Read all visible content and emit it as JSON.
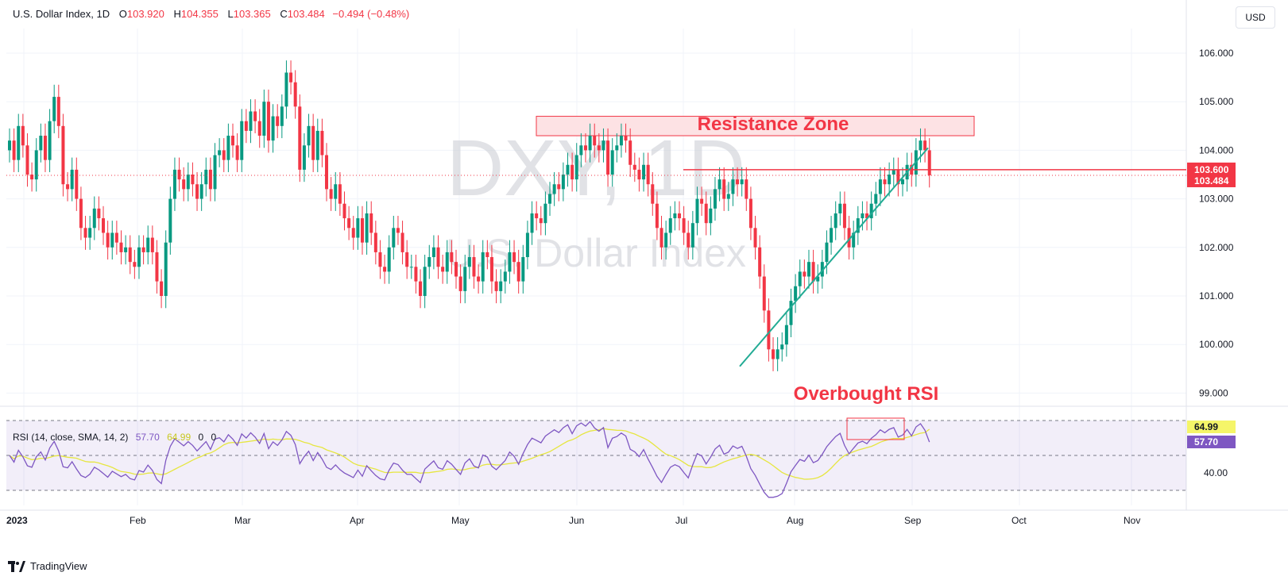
{
  "header": {
    "symbol": "U.S. Dollar Index, 1D",
    "open_label": "O",
    "open": "103.920",
    "high_label": "H",
    "high": "104.355",
    "low_label": "L",
    "low": "103.365",
    "close_label": "C",
    "close": "103.484",
    "change": "−0.494 (−0.48%)"
  },
  "currency_button": "USD",
  "watermark": {
    "ticker": "DXY, 1D",
    "name": "U.S. Dollar Index"
  },
  "annotations": {
    "resistance": "Resistance Zone",
    "rsi": "Overbought RSI"
  },
  "rsi_header": {
    "label": "RSI (14, close, SMA, 14, 2)",
    "rsi_value": "57.70",
    "sma_value": "64.99",
    "extra1": "0",
    "extra2": "0"
  },
  "footer": {
    "brand": "TradingView"
  },
  "colors": {
    "up": "#089981",
    "down": "#f23645",
    "rsi_line": "#7e57c2",
    "rsi_sma": "#e6e640",
    "trendline": "#22ab94",
    "resistance_fill": "#fde2e4",
    "resistance_stroke": "#f23645"
  },
  "chart_data": [
    {
      "type": "candlestick",
      "title": "U.S. Dollar Index, 1D",
      "y_ticks": [
        "106.000",
        "105.000",
        "104.000",
        "103.000",
        "102.000",
        "101.000",
        "100.000",
        "99.000"
      ],
      "x_ticks": [
        "2023",
        "Feb",
        "Mar",
        "Apr",
        "May",
        "Jun",
        "Jul",
        "Aug",
        "Sep",
        "Oct",
        "Nov"
      ],
      "ylim": [
        98.6,
        107.0
      ],
      "price_labels": [
        {
          "value": "103.600",
          "kind": "resistance-line"
        },
        {
          "value": "103.484",
          "kind": "last-price"
        }
      ],
      "resistance_zone": [
        104.3,
        104.7
      ],
      "horizontal_line": 103.6,
      "trendline": {
        "from": {
          "date": "2023-07-13",
          "price": 99.55
        },
        "to": {
          "date": "2023-09-01",
          "price": 104.05
        }
      },
      "series_close": [
        [
          0,
          104.2
        ],
        [
          1,
          103.8
        ],
        [
          2,
          104.5
        ],
        [
          3,
          104.1
        ],
        [
          4,
          103.5
        ],
        [
          5,
          103.4
        ],
        [
          6,
          104.0
        ],
        [
          7,
          104.3
        ],
        [
          8,
          103.8
        ],
        [
          9,
          104.6
        ],
        [
          10,
          105.1
        ],
        [
          11,
          104.5
        ],
        [
          12,
          103.3
        ],
        [
          13,
          103.2
        ],
        [
          14,
          103.6
        ],
        [
          15,
          103.0
        ],
        [
          16,
          102.4
        ],
        [
          17,
          102.2
        ],
        [
          18,
          102.4
        ],
        [
          19,
          102.8
        ],
        [
          20,
          102.6
        ],
        [
          21,
          102.3
        ],
        [
          22,
          102.0
        ],
        [
          23,
          102.3
        ],
        [
          24,
          102.1
        ],
        [
          25,
          101.9
        ],
        [
          26,
          102.0
        ],
        [
          27,
          101.7
        ],
        [
          28,
          101.6
        ],
        [
          29,
          102.0
        ],
        [
          30,
          101.9
        ],
        [
          31,
          102.2
        ],
        [
          32,
          101.9
        ],
        [
          33,
          101.3
        ],
        [
          34,
          101.0
        ],
        [
          35,
          102.1
        ],
        [
          36,
          103.0
        ],
        [
          37,
          103.6
        ],
        [
          38,
          103.4
        ],
        [
          39,
          103.2
        ],
        [
          40,
          103.5
        ],
        [
          41,
          103.3
        ],
        [
          42,
          103.0
        ],
        [
          43,
          103.3
        ],
        [
          44,
          103.6
        ],
        [
          45,
          103.2
        ],
        [
          46,
          103.9
        ],
        [
          47,
          104.0
        ],
        [
          48,
          103.8
        ],
        [
          49,
          104.3
        ],
        [
          50,
          104.1
        ],
        [
          51,
          103.8
        ],
        [
          52,
          104.6
        ],
        [
          53,
          104.4
        ],
        [
          54,
          104.8
        ],
        [
          55,
          104.6
        ],
        [
          56,
          104.3
        ],
        [
          57,
          105.0
        ],
        [
          58,
          104.2
        ],
        [
          59,
          104.7
        ],
        [
          60,
          104.5
        ],
        [
          61,
          104.9
        ],
        [
          62,
          105.6
        ],
        [
          63,
          105.4
        ],
        [
          64,
          104.9
        ],
        [
          65,
          103.6
        ],
        [
          66,
          104.1
        ],
        [
          67,
          104.5
        ],
        [
          68,
          103.8
        ],
        [
          69,
          104.4
        ],
        [
          70,
          103.9
        ],
        [
          71,
          103.2
        ],
        [
          72,
          103.0
        ],
        [
          73,
          103.3
        ],
        [
          74,
          102.9
        ],
        [
          75,
          102.6
        ],
        [
          76,
          102.4
        ],
        [
          77,
          102.2
        ],
        [
          78,
          102.6
        ],
        [
          79,
          102.1
        ],
        [
          80,
          102.7
        ],
        [
          81,
          102.3
        ],
        [
          82,
          101.9
        ],
        [
          83,
          101.6
        ],
        [
          84,
          101.5
        ],
        [
          85,
          102.0
        ],
        [
          86,
          102.4
        ],
        [
          87,
          102.3
        ],
        [
          88,
          101.9
        ],
        [
          89,
          101.6
        ],
        [
          90,
          101.6
        ],
        [
          91,
          101.3
        ],
        [
          92,
          101.0
        ],
        [
          93,
          101.6
        ],
        [
          94,
          101.8
        ],
        [
          95,
          102.0
        ],
        [
          96,
          101.6
        ],
        [
          97,
          101.5
        ],
        [
          98,
          101.9
        ],
        [
          99,
          101.7
        ],
        [
          100,
          101.4
        ],
        [
          101,
          101.1
        ],
        [
          102,
          101.6
        ],
        [
          103,
          101.8
        ],
        [
          104,
          101.4
        ],
        [
          105,
          101.3
        ],
        [
          106,
          101.9
        ],
        [
          107,
          101.8
        ],
        [
          108,
          101.3
        ],
        [
          109,
          101.1
        ],
        [
          110,
          101.3
        ],
        [
          111,
          101.5
        ],
        [
          112,
          101.9
        ],
        [
          113,
          101.7
        ],
        [
          114,
          101.3
        ],
        [
          115,
          101.8
        ],
        [
          116,
          102.3
        ],
        [
          117,
          102.7
        ],
        [
          118,
          102.6
        ],
        [
          119,
          102.5
        ],
        [
          120,
          102.9
        ],
        [
          121,
          103.1
        ],
        [
          122,
          103.3
        ],
        [
          123,
          103.2
        ],
        [
          124,
          103.5
        ],
        [
          125,
          103.7
        ],
        [
          126,
          103.4
        ],
        [
          127,
          103.9
        ],
        [
          128,
          104.1
        ],
        [
          129,
          104.0
        ],
        [
          130,
          104.3
        ],
        [
          131,
          104.1
        ],
        [
          132,
          104.0
        ],
        [
          133,
          104.2
        ],
        [
          134,
          103.5
        ],
        [
          135,
          104.0
        ],
        [
          136,
          104.1
        ],
        [
          137,
          104.3
        ],
        [
          138,
          104.2
        ],
        [
          139,
          103.7
        ],
        [
          140,
          103.6
        ],
        [
          141,
          103.4
        ],
        [
          142,
          103.7
        ],
        [
          143,
          103.3
        ],
        [
          144,
          102.9
        ],
        [
          145,
          102.4
        ],
        [
          146,
          102.0
        ],
        [
          147,
          102.3
        ],
        [
          148,
          102.6
        ],
        [
          149,
          102.7
        ],
        [
          150,
          102.6
        ],
        [
          151,
          102.3
        ],
        [
          152,
          102.0
        ],
        [
          153,
          102.5
        ],
        [
          154,
          103.0
        ],
        [
          155,
          102.9
        ],
        [
          156,
          102.5
        ],
        [
          157,
          102.8
        ],
        [
          158,
          103.2
        ],
        [
          159,
          103.4
        ],
        [
          160,
          103.0
        ],
        [
          161,
          103.1
        ],
        [
          162,
          103.4
        ],
        [
          163,
          103.3
        ],
        [
          164,
          103.4
        ],
        [
          165,
          103.0
        ],
        [
          166,
          102.4
        ],
        [
          167,
          102.0
        ],
        [
          168,
          101.4
        ],
        [
          169,
          100.7
        ],
        [
          170,
          99.9
        ],
        [
          171,
          99.7
        ],
        [
          172,
          99.9
        ],
        [
          173,
          100.0
        ],
        [
          174,
          100.4
        ],
        [
          175,
          100.9
        ],
        [
          176,
          101.2
        ],
        [
          177,
          101.5
        ],
        [
          178,
          101.4
        ],
        [
          179,
          101.7
        ],
        [
          180,
          101.3
        ],
        [
          181,
          101.4
        ],
        [
          182,
          101.7
        ],
        [
          183,
          102.1
        ],
        [
          184,
          102.4
        ],
        [
          185,
          102.7
        ],
        [
          186,
          102.9
        ],
        [
          187,
          102.4
        ],
        [
          188,
          102.0
        ],
        [
          189,
          102.3
        ],
        [
          190,
          102.6
        ],
        [
          191,
          102.7
        ],
        [
          192,
          102.6
        ],
        [
          193,
          102.9
        ],
        [
          194,
          103.1
        ],
        [
          195,
          103.4
        ],
        [
          196,
          103.3
        ],
        [
          197,
          103.5
        ],
        [
          198,
          103.6
        ],
        [
          199,
          103.3
        ],
        [
          200,
          103.4
        ],
        [
          201,
          103.7
        ],
        [
          202,
          103.5
        ],
        [
          203,
          104.0
        ],
        [
          204,
          104.2
        ],
        [
          205,
          104.0
        ],
        [
          206,
          103.484
        ]
      ]
    },
    {
      "type": "line",
      "title": "RSI (14, close, SMA, 14, 2)",
      "y_ticks": [
        "40.00"
      ],
      "levels": [
        70,
        50,
        30
      ],
      "ylim": [
        26,
        75
      ],
      "series": [
        {
          "name": "RSI",
          "last": 57.7
        },
        {
          "name": "SMA",
          "last": 64.99
        }
      ]
    }
  ]
}
